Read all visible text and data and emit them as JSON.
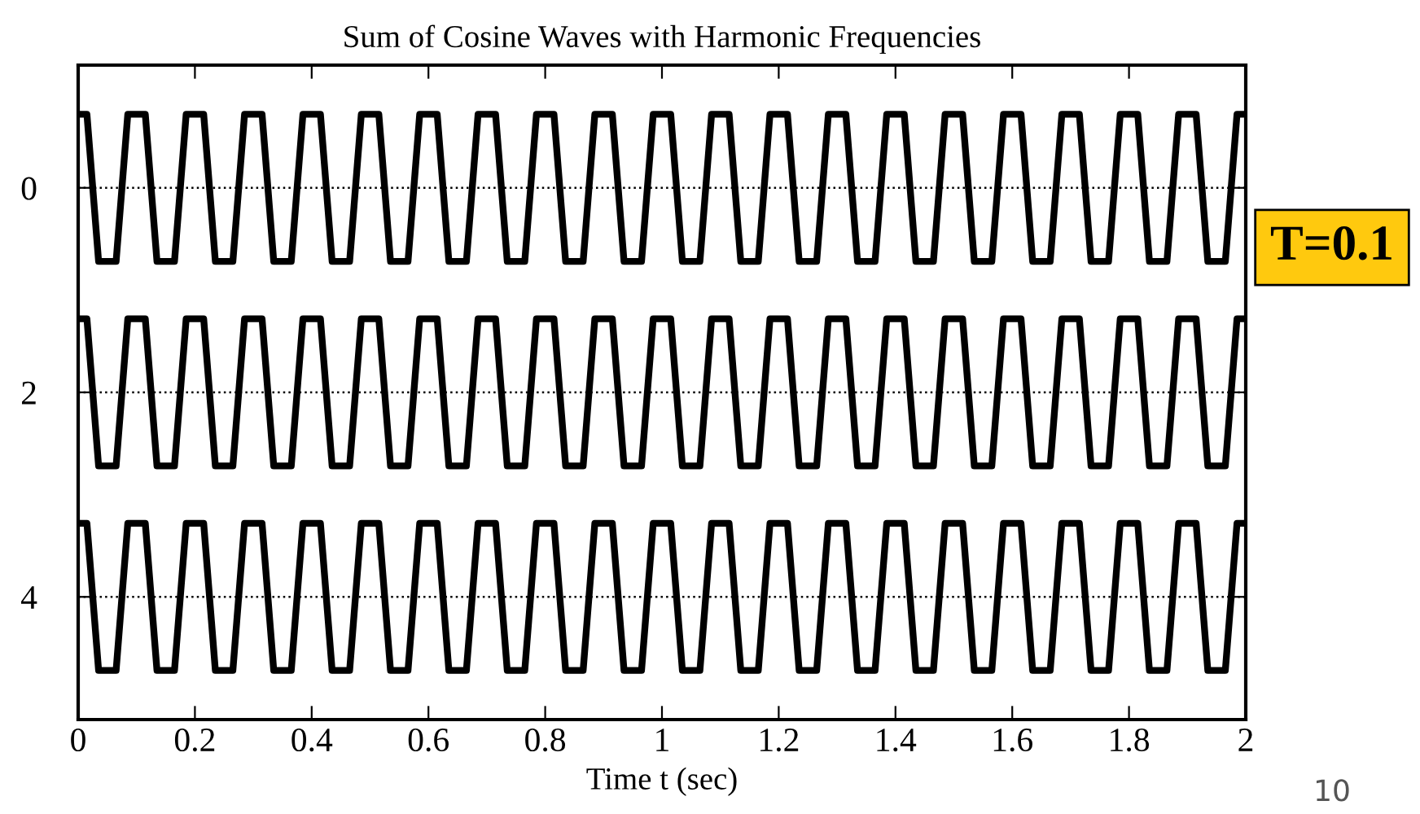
{
  "chart_data": {
    "type": "line",
    "title": "Sum of Cosine Waves with Harmonic Frequencies",
    "xlabel": "Time t (sec)",
    "x": [
      0,
      0.015,
      0.035,
      0.065,
      0.085,
      0.115,
      0.135,
      0.165,
      0.185,
      0.215,
      0.235,
      0.265,
      0.285,
      0.315,
      0.335,
      0.365,
      0.385,
      0.415,
      0.435,
      0.465,
      0.485,
      0.515,
      0.535,
      0.565,
      0.585,
      0.615,
      0.635,
      0.665,
      0.685,
      0.715,
      0.735,
      0.765,
      0.785,
      0.815,
      0.835,
      0.865,
      0.885,
      0.915,
      0.935,
      0.965,
      0.985,
      1.015,
      1.035,
      1.065,
      1.085,
      1.115,
      1.135,
      1.165,
      1.185,
      1.215,
      1.235,
      1.265,
      1.285,
      1.315,
      1.335,
      1.365,
      1.385,
      1.415,
      1.435,
      1.465,
      1.485,
      1.515,
      1.535,
      1.565,
      1.585,
      1.615,
      1.635,
      1.665,
      1.685,
      1.715,
      1.735,
      1.765,
      1.785,
      1.815,
      1.835,
      1.865,
      1.885,
      1.915,
      1.935,
      1.965,
      1.985,
      2
    ],
    "series": [
      {
        "color": "#000000",
        "values": [
          -0.72,
          -0.72,
          0.72,
          0.72,
          -0.72,
          -0.72,
          0.72,
          0.72,
          -0.72,
          -0.72,
          0.72,
          0.72,
          -0.72,
          -0.72,
          0.72,
          0.72,
          -0.72,
          -0.72,
          0.72,
          0.72,
          -0.72,
          -0.72,
          0.72,
          0.72,
          -0.72,
          -0.72,
          0.72,
          0.72,
          -0.72,
          -0.72,
          0.72,
          0.72,
          -0.72,
          -0.72,
          0.72,
          0.72,
          -0.72,
          -0.72,
          0.72,
          0.72,
          -0.72,
          -0.72,
          0.72,
          0.72,
          -0.72,
          -0.72,
          0.72,
          0.72,
          -0.72,
          -0.72,
          0.72,
          0.72,
          -0.72,
          -0.72,
          0.72,
          0.72,
          -0.72,
          -0.72,
          0.72,
          0.72,
          -0.72,
          -0.72,
          0.72,
          0.72,
          -0.72,
          -0.72,
          0.72,
          0.72,
          -0.72,
          -0.72,
          0.72,
          0.72,
          -0.72,
          -0.72,
          0.72,
          0.72,
          -0.72,
          -0.72,
          0.72,
          0.72,
          -0.72,
          -0.72
        ]
      },
      {
        "color": "#000000",
        "values": [
          1.28,
          1.28,
          2.72,
          2.72,
          1.28,
          1.28,
          2.72,
          2.72,
          1.28,
          1.28,
          2.72,
          2.72,
          1.28,
          1.28,
          2.72,
          2.72,
          1.28,
          1.28,
          2.72,
          2.72,
          1.28,
          1.28,
          2.72,
          2.72,
          1.28,
          1.28,
          2.72,
          2.72,
          1.28,
          1.28,
          2.72,
          2.72,
          1.28,
          1.28,
          2.72,
          2.72,
          1.28,
          1.28,
          2.72,
          2.72,
          1.28,
          1.28,
          2.72,
          2.72,
          1.28,
          1.28,
          2.72,
          2.72,
          1.28,
          1.28,
          2.72,
          2.72,
          1.28,
          1.28,
          2.72,
          2.72,
          1.28,
          1.28,
          2.72,
          2.72,
          1.28,
          1.28,
          2.72,
          2.72,
          1.28,
          1.28,
          2.72,
          2.72,
          1.28,
          1.28,
          2.72,
          2.72,
          1.28,
          1.28,
          2.72,
          2.72,
          1.28,
          1.28,
          2.72,
          2.72,
          1.28,
          1.28
        ]
      },
      {
        "color": "#000000",
        "values": [
          3.28,
          3.28,
          4.72,
          4.72,
          3.28,
          3.28,
          4.72,
          4.72,
          3.28,
          3.28,
          4.72,
          4.72,
          3.28,
          3.28,
          4.72,
          4.72,
          3.28,
          3.28,
          4.72,
          4.72,
          3.28,
          3.28,
          4.72,
          4.72,
          3.28,
          3.28,
          4.72,
          4.72,
          3.28,
          3.28,
          4.72,
          4.72,
          3.28,
          3.28,
          4.72,
          4.72,
          3.28,
          3.28,
          4.72,
          4.72,
          3.28,
          3.28,
          4.72,
          4.72,
          3.28,
          3.28,
          4.72,
          4.72,
          3.28,
          3.28,
          4.72,
          4.72,
          3.28,
          3.28,
          4.72,
          4.72,
          3.28,
          3.28,
          4.72,
          4.72,
          3.28,
          3.28,
          4.72,
          4.72,
          3.28,
          3.28,
          4.72,
          4.72,
          3.28,
          3.28,
          4.72,
          4.72,
          3.28,
          3.28,
          4.72,
          4.72,
          3.28,
          3.28,
          4.72,
          4.72,
          3.28,
          3.28
        ]
      }
    ],
    "xlim": [
      0,
      2
    ],
    "xticks": [
      0,
      {
        "value": 0.2,
        "label": "0.2"
      },
      {
        "value": 0.4,
        "label": "0.4"
      },
      {
        "value": 0.6,
        "label": "0.6"
      },
      {
        "value": 0.8,
        "label": "0.8"
      },
      1,
      {
        "value": 1.2,
        "label": "1.2"
      },
      {
        "value": 1.4,
        "label": "1.4"
      },
      {
        "value": 1.6,
        "label": "1.6"
      },
      {
        "value": 1.8,
        "label": "1.8"
      },
      2
    ],
    "ylim": [
      5.2,
      -1.2
    ],
    "yticks": [
      0,
      2,
      4
    ],
    "ref_lines": [
      {
        "axis": "y",
        "value": 0,
        "color": "#000000",
        "line_style": "dotted"
      },
      {
        "axis": "y",
        "value": 2,
        "color": "#000000",
        "line_style": "dotted"
      },
      {
        "axis": "y",
        "value": 4,
        "color": "#000000",
        "line_style": "dotted"
      }
    ],
    "annotations": [
      "T=0.1",
      "10"
    ],
    "grid": false,
    "legend": false,
    "marker": "none",
    "line_style": "solid"
  }
}
